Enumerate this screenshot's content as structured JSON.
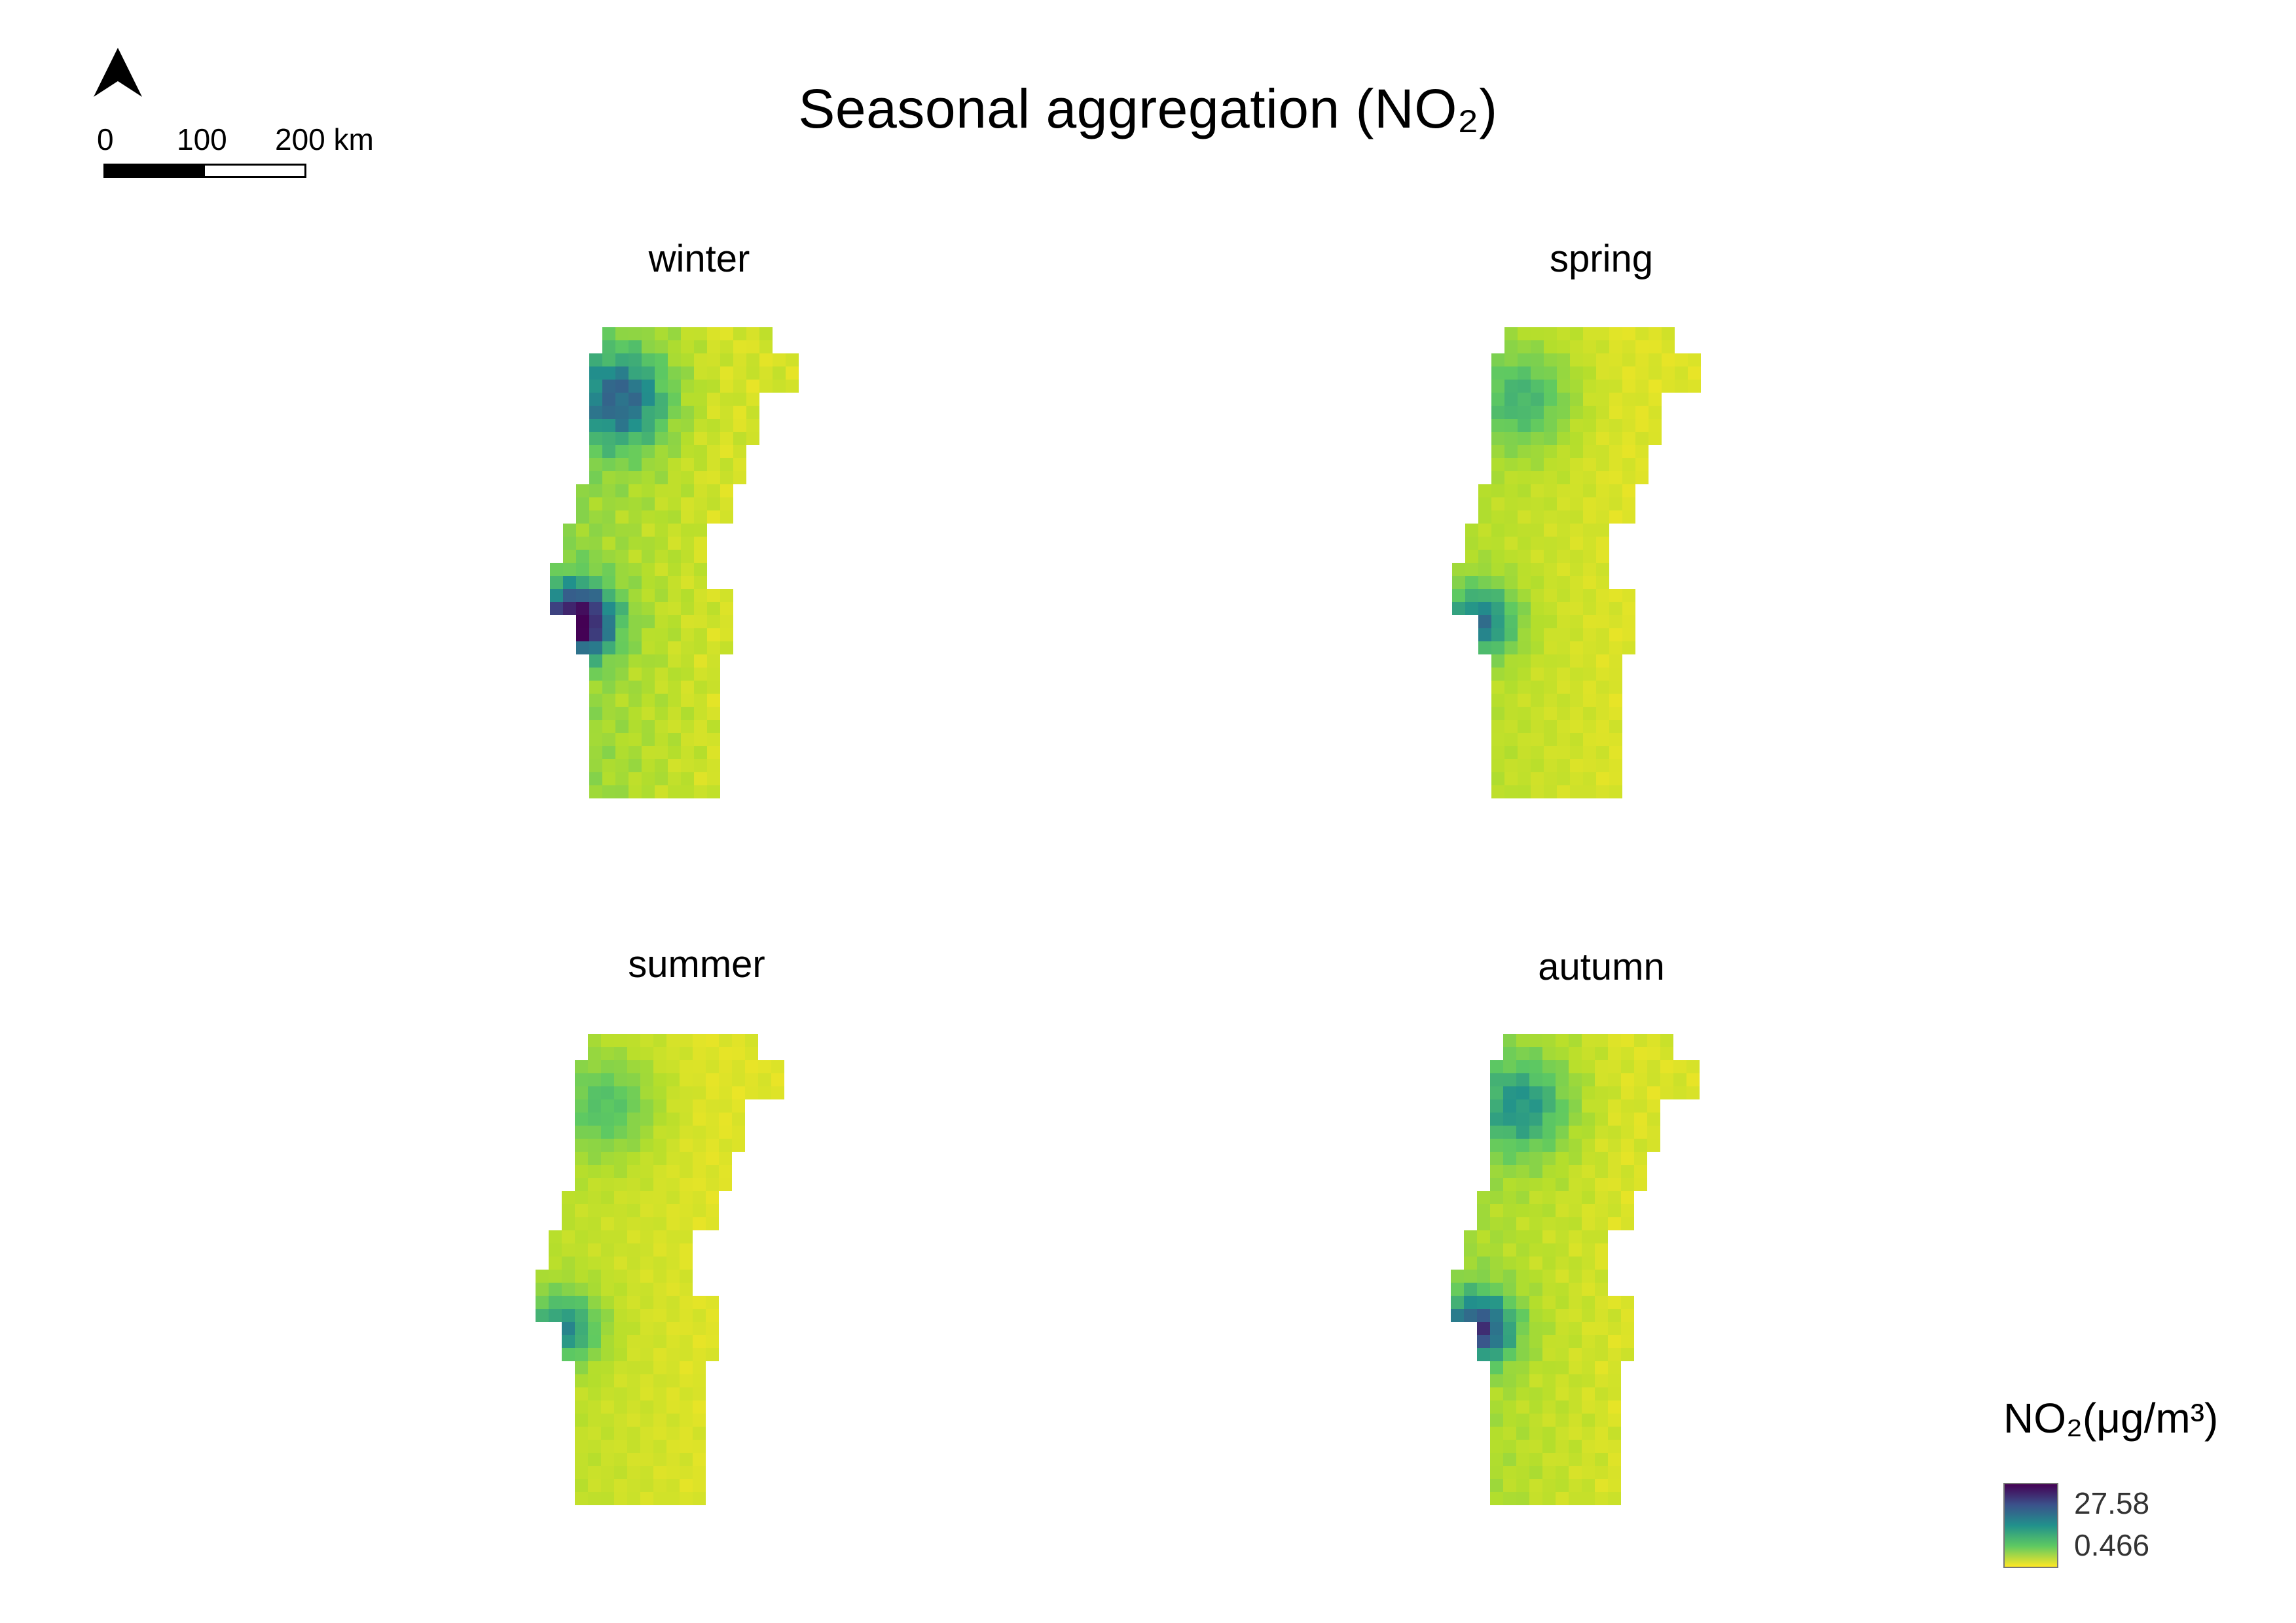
{
  "title": "Seasonal aggregation (NO₂)",
  "scalebar": {
    "labels": [
      "0",
      "100",
      "200 km"
    ]
  },
  "north_arrow": {
    "icon": "north-arrow-icon"
  },
  "panels": [
    {
      "id": "winter",
      "label": "winter",
      "intensity": 1.0
    },
    {
      "id": "spring",
      "label": "spring",
      "intensity": 0.62
    },
    {
      "id": "summer",
      "label": "summer",
      "intensity": 0.55
    },
    {
      "id": "autumn",
      "label": "autumn",
      "intensity": 0.78
    }
  ],
  "legend": {
    "title": "NO₂(μg/m³)",
    "max_label": "27.58",
    "min_label": "0.466",
    "colors": [
      "#440154",
      "#3b528b",
      "#21918c",
      "#5ec962",
      "#fde725"
    ]
  }
}
